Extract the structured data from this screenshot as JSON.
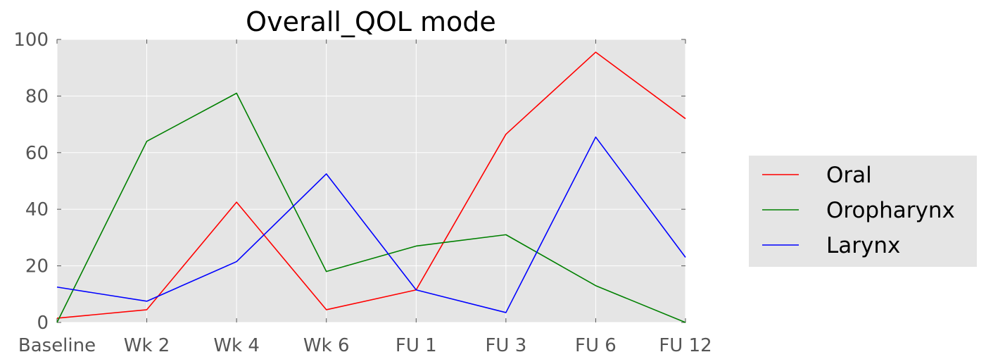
{
  "chart_data": {
    "type": "line",
    "title": "Overall_QOL  mode",
    "xlabel": "",
    "ylabel": "",
    "categories": [
      "Baseline",
      "Wk 2",
      "Wk 4",
      "Wk 6",
      "FU 1",
      "FU 3",
      "FU 6",
      "FU 12"
    ],
    "yticks": [
      "0",
      "20",
      "40",
      "60",
      "80",
      "100"
    ],
    "ylim": [
      0,
      100
    ],
    "grid": true,
    "legend_position": "right",
    "series": [
      {
        "name": "Oral",
        "color": "#ff0000",
        "values": [
          1.5,
          4.5,
          42.5,
          4.5,
          11.5,
          66.5,
          95.5,
          72
        ]
      },
      {
        "name": "Oropharynx",
        "color": "#008000",
        "values": [
          0,
          64,
          81,
          18,
          27,
          31,
          13,
          0
        ]
      },
      {
        "name": "Larynx",
        "color": "#0000ff",
        "values": [
          12.5,
          7.5,
          21.5,
          52.5,
          11.5,
          3.5,
          65.5,
          23
        ]
      }
    ]
  }
}
